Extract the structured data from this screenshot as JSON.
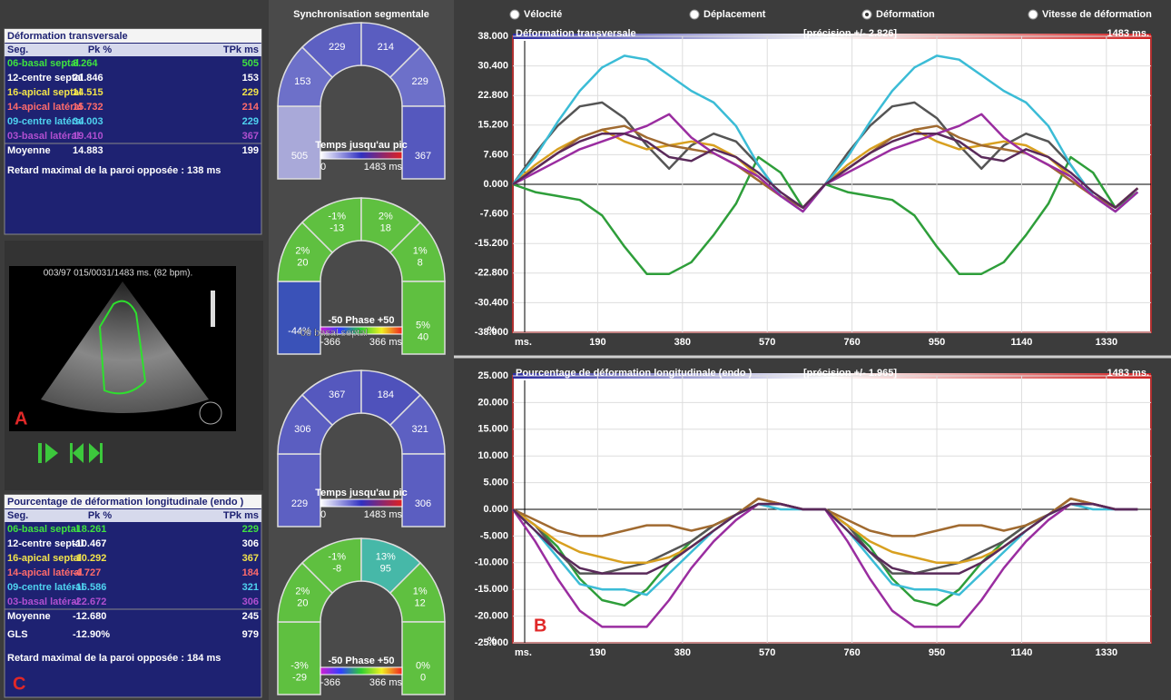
{
  "transverse_table": {
    "title": "Déformation transversale",
    "header": [
      "Seg.",
      "Pk %",
      "TPk ms"
    ],
    "rows": [
      [
        "06-basal septal",
        "8.264",
        "505"
      ],
      [
        "12-centre septal",
        "21.846",
        "153"
      ],
      [
        "16-apical septal",
        "14.515",
        "229"
      ],
      [
        "14-apical latéral",
        "15.732",
        "214"
      ],
      [
        "09-centre latéral",
        "34.003",
        "229"
      ],
      [
        "03-basal latéral",
        "19.410",
        "367"
      ]
    ],
    "row_colors": [
      "#3fe23f",
      "#ffffff",
      "#f2e34a",
      "#ff6b6b",
      "#4fd3f0",
      "#b04fd0"
    ],
    "mean": [
      "Moyenne",
      "14.883",
      "199"
    ],
    "note": "Retard maximal de la paroi opposée : 138 ms"
  },
  "longitudinal_table": {
    "title": "Pourcentage de déformation longitudinale (endo )",
    "header": [
      "Seg.",
      "Pk %",
      "TPk ms"
    ],
    "rows": [
      [
        "06-basal septal",
        "-18.261",
        "229"
      ],
      [
        "12-centre septal",
        "-10.467",
        "306"
      ],
      [
        "16-apical septal",
        "-10.292",
        "367"
      ],
      [
        "14-apical latéral",
        "-4.727",
        "184"
      ],
      [
        "09-centre latéral",
        "-16.586",
        "321"
      ],
      [
        "03-basal latéral",
        "-22.672",
        "306"
      ]
    ],
    "row_colors": [
      "#3fe23f",
      "#ffffff",
      "#f2e34a",
      "#ff6b6b",
      "#4fd3f0",
      "#b04fd0"
    ],
    "mean": [
      "Moyenne",
      "-12.680",
      "245"
    ],
    "gls": [
      "GLS",
      "-12.90%",
      "979"
    ],
    "note": "Retard maximal de la paroi opposée : 184 ms",
    "label": "C"
  },
  "echo": {
    "info": "003/97  015/0031/1483 ms.  (82 bpm).",
    "label": "A"
  },
  "sync": {
    "title": "Synchronisation segmentale",
    "time_legend": {
      "title": "Temps jusqu'au pic",
      "min": "0",
      "max": "1483 ms"
    },
    "phase_legend": {
      "title": "-50  Phase  +50",
      "min": "-366",
      "max": "366 ms"
    },
    "bullseyes": [
      {
        "kind": "time",
        "values": [
          [
            "505"
          ],
          [
            "153"
          ],
          [
            "229"
          ],
          [
            "214"
          ],
          [
            "229"
          ],
          [
            "367"
          ]
        ],
        "colors": [
          "#a9a9d9",
          "#6d70c9",
          "#5d60c2",
          "#5a5dc0",
          "#6d70c9",
          "#5558be"
        ]
      },
      {
        "kind": "phase",
        "values": [
          [
            "-44%"
          ],
          [
            "2%",
            "20"
          ],
          [
            "-1%",
            "-13"
          ],
          [
            "2%",
            "18"
          ],
          [
            "1%",
            "8"
          ],
          [
            "5%",
            "40"
          ]
        ],
        "colors": [
          "#3a52b8",
          "#5fc040",
          "#5fc040",
          "#5fc040",
          "#5fc040",
          "#5fc040"
        ],
        "segment_label": "-06 basal septal"
      },
      {
        "kind": "time",
        "values": [
          [
            "229"
          ],
          [
            "306"
          ],
          [
            "367"
          ],
          [
            "184"
          ],
          [
            "321"
          ],
          [
            "306"
          ]
        ],
        "colors": [
          "#5d60c2",
          "#5b5ec1",
          "#5558be",
          "#4f52bb",
          "#5d60c2",
          "#5b5ec1"
        ]
      },
      {
        "kind": "phase",
        "values": [
          [
            "-3%",
            "-29"
          ],
          [
            "2%",
            "20"
          ],
          [
            "-1%",
            "-8"
          ],
          [
            "13%",
            "95"
          ],
          [
            "1%",
            "12"
          ],
          [
            "0%",
            "0"
          ]
        ],
        "colors": [
          "#5fc040",
          "#5fc040",
          "#5fc040",
          "#46b8a8",
          "#5fc040",
          "#5fc040"
        ]
      }
    ]
  },
  "modes": {
    "options": [
      "Vélocité",
      "Déplacement",
      "Déformation",
      "Vitesse de déformation"
    ],
    "selected": 2
  },
  "chart_data": [
    {
      "type": "line",
      "title": "Déformation transversale",
      "precision": "[précision  +/- 2.826]",
      "duration": "1483 ms.",
      "y_label": "%",
      "x_label": "ms.",
      "xlim": [
        0,
        1430
      ],
      "xticks": [
        190,
        380,
        570,
        760,
        950,
        1140,
        1330
      ],
      "ylim": [
        -38,
        38
      ],
      "yticks": [
        {
          "value": 38,
          "label": "38.000"
        },
        {
          "value": 30.4,
          "label": "30.400"
        },
        {
          "value": 22.8,
          "label": "22.800"
        },
        {
          "value": 15.2,
          "label": "15.200"
        },
        {
          "value": 7.6,
          "label": "7.600"
        },
        {
          "value": 0,
          "label": "0.000"
        },
        {
          "value": -7.6,
          "label": "-7.600"
        },
        {
          "value": -15.2,
          "label": "-15.200"
        },
        {
          "value": -22.8,
          "label": "-22.800"
        },
        {
          "value": -30.4,
          "label": "-30.400"
        },
        {
          "value": -38,
          "label": "-38.000"
        }
      ],
      "grid": true,
      "x": [
        0,
        50,
        100,
        150,
        200,
        250,
        300,
        350,
        400,
        450,
        500,
        550,
        600,
        650,
        700,
        750,
        800,
        850,
        900,
        950,
        1000,
        1050,
        1100,
        1150,
        1200,
        1250,
        1300,
        1350,
        1400
      ],
      "series": [
        {
          "color": "#2e9e3a",
          "values": [
            0,
            -2,
            -3,
            -4,
            -8,
            -16,
            -23,
            -23,
            -20,
            -13,
            -5,
            7,
            3,
            -6,
            0,
            -2,
            -3,
            -4,
            -8,
            -16,
            -23,
            -23,
            -20,
            -13,
            -5,
            7,
            3,
            -6,
            -2
          ]
        },
        {
          "color": "#555555",
          "values": [
            0,
            8,
            15,
            20,
            21,
            17,
            10,
            4,
            10,
            13,
            11,
            5,
            -3,
            -6,
            0,
            8,
            15,
            20,
            21,
            17,
            10,
            4,
            10,
            13,
            11,
            5,
            -3,
            -6,
            -1
          ]
        },
        {
          "color": "#d8a020",
          "values": [
            0,
            5,
            9,
            12,
            14,
            11,
            9,
            10,
            11,
            10,
            7,
            2,
            -3,
            -6,
            0,
            5,
            9,
            12,
            14,
            11,
            9,
            10,
            11,
            10,
            7,
            2,
            -3,
            -6,
            -1
          ]
        },
        {
          "color": "#a06a30",
          "values": [
            0,
            4,
            8,
            12,
            14,
            15,
            12,
            10,
            9,
            8,
            5,
            1,
            -3,
            -6,
            0,
            4,
            8,
            12,
            14,
            15,
            12,
            10,
            9,
            8,
            5,
            1,
            -3,
            -6,
            -1
          ]
        },
        {
          "color": "#3bbcd6",
          "values": [
            0,
            7,
            16,
            24,
            30,
            33,
            32,
            28,
            24,
            21,
            15,
            5,
            -3,
            -7,
            0,
            7,
            16,
            24,
            30,
            33,
            32,
            28,
            24,
            21,
            15,
            5,
            -3,
            -7,
            -2
          ]
        },
        {
          "color": "#9a2da0",
          "values": [
            0,
            3,
            6,
            9,
            11,
            13,
            15,
            18,
            12,
            8,
            5,
            2,
            -3,
            -7,
            0,
            3,
            6,
            9,
            11,
            13,
            15,
            18,
            12,
            8,
            5,
            2,
            -3,
            -7,
            -2
          ]
        },
        {
          "color": "#5a2a5a",
          "values": [
            0,
            4,
            8,
            11,
            13,
            13,
            11,
            7,
            6,
            9,
            7,
            3,
            -2,
            -6,
            0,
            4,
            8,
            11,
            13,
            13,
            11,
            7,
            6,
            9,
            7,
            3,
            -2,
            -6,
            -1
          ]
        }
      ]
    },
    {
      "type": "line",
      "title": "Pourcentage de déformation longitudinale (endo )",
      "precision": "[précision  +/- 1.965]",
      "duration": "1483 ms.",
      "y_label": "%",
      "x_label": "ms.",
      "label": "B",
      "xlim": [
        0,
        1430
      ],
      "xticks": [
        190,
        380,
        570,
        760,
        950,
        1140,
        1330
      ],
      "ylim": [
        -25,
        25
      ],
      "yticks": [
        {
          "value": 25,
          "label": "25.000"
        },
        {
          "value": 20,
          "label": "20.000"
        },
        {
          "value": 15,
          "label": "15.000"
        },
        {
          "value": 10,
          "label": "10.000"
        },
        {
          "value": 5,
          "label": "5.000"
        },
        {
          "value": 0,
          "label": "0.000"
        },
        {
          "value": -5,
          "label": "-5.000"
        },
        {
          "value": -10,
          "label": "-10.000"
        },
        {
          "value": -15,
          "label": "-15.000"
        },
        {
          "value": -20,
          "label": "-20.000"
        },
        {
          "value": -25,
          "label": "-25.000"
        }
      ],
      "grid": true,
      "x": [
        0,
        50,
        100,
        150,
        200,
        250,
        300,
        350,
        400,
        450,
        500,
        550,
        600,
        650,
        700,
        750,
        800,
        850,
        900,
        950,
        1000,
        1050,
        1100,
        1150,
        1200,
        1250,
        1300,
        1350,
        1400
      ],
      "series": [
        {
          "color": "#2e9e3a",
          "values": [
            0,
            -3,
            -7,
            -13,
            -17,
            -18,
            -15,
            -10,
            -6,
            -3,
            -1,
            1,
            1,
            0,
            0,
            -3,
            -7,
            -13,
            -17,
            -18,
            -15,
            -10,
            -6,
            -3,
            -1,
            1,
            1,
            0,
            0
          ]
        },
        {
          "color": "#555555",
          "values": [
            0,
            -3,
            -8,
            -12,
            -12,
            -11,
            -10,
            -8,
            -6,
            -3,
            -1,
            2,
            1,
            0,
            0,
            -3,
            -8,
            -12,
            -12,
            -11,
            -10,
            -8,
            -6,
            -3,
            -1,
            2,
            1,
            0,
            0
          ]
        },
        {
          "color": "#d8a020",
          "values": [
            0,
            -3,
            -6,
            -8,
            -9,
            -10,
            -10,
            -9,
            -7,
            -4,
            -1,
            2,
            1,
            0,
            0,
            -3,
            -6,
            -8,
            -9,
            -10,
            -10,
            -9,
            -7,
            -4,
            -1,
            2,
            1,
            0,
            0
          ]
        },
        {
          "color": "#a06a30",
          "values": [
            0,
            -2,
            -4,
            -5,
            -5,
            -4,
            -3,
            -3,
            -4,
            -3,
            -1,
            2,
            1,
            0,
            0,
            -2,
            -4,
            -5,
            -5,
            -4,
            -3,
            -3,
            -4,
            -3,
            -1,
            2,
            1,
            0,
            0
          ]
        },
        {
          "color": "#3bbcd6",
          "values": [
            0,
            -4,
            -9,
            -14,
            -15,
            -15,
            -16,
            -12,
            -8,
            -4,
            -1,
            1,
            0,
            0,
            0,
            -4,
            -9,
            -14,
            -15,
            -15,
            -16,
            -12,
            -8,
            -4,
            -1,
            1,
            0,
            0,
            0
          ]
        },
        {
          "color": "#9a2da0",
          "values": [
            0,
            -6,
            -13,
            -19,
            -22,
            -22,
            -22,
            -17,
            -11,
            -6,
            -2,
            1,
            1,
            0,
            0,
            -6,
            -13,
            -19,
            -22,
            -22,
            -22,
            -17,
            -11,
            -6,
            -2,
            1,
            1,
            0,
            0
          ]
        },
        {
          "color": "#5a2a5a",
          "values": [
            0,
            -4,
            -8,
            -11,
            -12,
            -12,
            -12,
            -10,
            -7,
            -4,
            -1,
            1,
            1,
            0,
            0,
            -4,
            -8,
            -11,
            -12,
            -12,
            -12,
            -10,
            -7,
            -4,
            -1,
            1,
            1,
            0,
            0
          ]
        }
      ]
    }
  ]
}
